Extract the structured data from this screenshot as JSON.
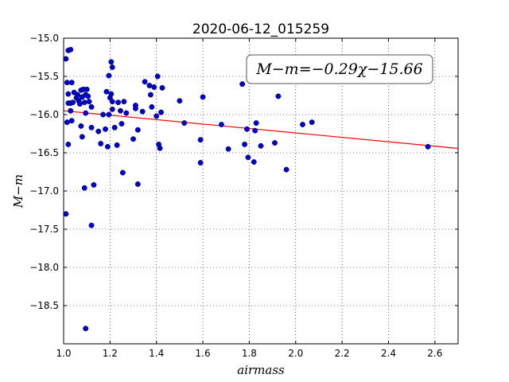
{
  "chart_data": {
    "type": "scatter",
    "title": "2020-06-12_015259",
    "xlabel": "airmass",
    "ylabel": "M−m",
    "xlim": [
      1.0,
      2.7
    ],
    "ylim": [
      -15.0,
      -19.0
    ],
    "y_inverted": true,
    "grid": true,
    "grid_style": "dotted",
    "x_ticks": [
      "1.0",
      "1.2",
      "1.4",
      "1.6",
      "1.8",
      "2.0",
      "2.2",
      "2.4",
      "2.6"
    ],
    "y_ticks": [
      "−15.0",
      "−15.5",
      "−16.0",
      "−16.5",
      "−17.0",
      "−17.5",
      "−18.0",
      "−18.5"
    ],
    "annotation": "M−m=−0.29χ−15.66",
    "annotation_position": "top-right",
    "fit_line": {
      "slope": -0.29,
      "intercept": -15.66,
      "color": "#ff0000"
    },
    "point_color": "#0000cc",
    "points": [
      [
        1.01,
        -15.27
      ],
      [
        1.02,
        -15.16
      ],
      [
        1.03,
        -15.15
      ],
      [
        1.015,
        -15.58
      ],
      [
        1.035,
        -15.58
      ],
      [
        1.02,
        -15.73
      ],
      [
        1.03,
        -15.85
      ],
      [
        1.02,
        -15.85
      ],
      [
        1.04,
        -15.84
      ],
      [
        1.055,
        -15.78
      ],
      [
        1.045,
        -15.71
      ],
      [
        1.06,
        -15.74
      ],
      [
        1.065,
        -15.82
      ],
      [
        1.07,
        -15.86
      ],
      [
        1.075,
        -15.68
      ],
      [
        1.08,
        -15.77
      ],
      [
        1.085,
        -15.67
      ],
      [
        1.09,
        -15.84
      ],
      [
        1.095,
        -15.74
      ],
      [
        1.1,
        -15.67
      ],
      [
        1.105,
        -15.76
      ],
      [
        1.11,
        -15.83
      ],
      [
        1.12,
        -15.9
      ],
      [
        1.03,
        -15.95
      ],
      [
        1.035,
        -16.08
      ],
      [
        1.015,
        -16.1
      ],
      [
        1.095,
        -15.98
      ],
      [
        1.075,
        -16.15
      ],
      [
        1.12,
        -16.17
      ],
      [
        1.08,
        -16.29
      ],
      [
        1.02,
        -16.39
      ],
      [
        1.09,
        -16.96
      ],
      [
        1.13,
        -16.92
      ],
      [
        1.01,
        -17.3
      ],
      [
        1.12,
        -17.45
      ],
      [
        1.095,
        -18.8
      ],
      [
        1.15,
        -16.22
      ],
      [
        1.16,
        -16.38
      ],
      [
        1.17,
        -16.0
      ],
      [
        1.18,
        -16.19
      ],
      [
        1.19,
        -16.42
      ],
      [
        1.185,
        -15.7
      ],
      [
        1.2,
        -15.78
      ],
      [
        1.195,
        -15.49
      ],
      [
        1.205,
        -15.31
      ],
      [
        1.21,
        -15.38
      ],
      [
        1.205,
        -15.73
      ],
      [
        1.21,
        -15.83
      ],
      [
        1.21,
        -15.93
      ],
      [
        1.195,
        -16.0
      ],
      [
        1.22,
        -16.17
      ],
      [
        1.23,
        -16.4
      ],
      [
        1.235,
        -15.84
      ],
      [
        1.245,
        -15.95
      ],
      [
        1.25,
        -16.12
      ],
      [
        1.26,
        -15.83
      ],
      [
        1.27,
        -15.98
      ],
      [
        1.255,
        -16.76
      ],
      [
        1.3,
        -16.32
      ],
      [
        1.31,
        -15.88
      ],
      [
        1.31,
        -15.92
      ],
      [
        1.32,
        -16.2
      ],
      [
        1.32,
        -16.91
      ],
      [
        1.34,
        -15.96
      ],
      [
        1.35,
        -15.57
      ],
      [
        1.37,
        -15.62
      ],
      [
        1.375,
        -15.74
      ],
      [
        1.38,
        -15.9
      ],
      [
        1.39,
        -15.64
      ],
      [
        1.4,
        -16.02
      ],
      [
        1.405,
        -15.5
      ],
      [
        1.41,
        -16.39
      ],
      [
        1.415,
        -16.44
      ],
      [
        1.42,
        -15.97
      ],
      [
        1.425,
        -15.65
      ],
      [
        1.5,
        -15.82
      ],
      [
        1.52,
        -16.11
      ],
      [
        1.59,
        -16.33
      ],
      [
        1.59,
        -16.63
      ],
      [
        1.6,
        -15.77
      ],
      [
        1.68,
        -16.13
      ],
      [
        1.71,
        -16.45
      ],
      [
        1.77,
        -15.6
      ],
      [
        1.78,
        -16.39
      ],
      [
        1.795,
        -16.56
      ],
      [
        1.79,
        -16.19
      ],
      [
        1.82,
        -16.62
      ],
      [
        1.825,
        -16.21
      ],
      [
        1.83,
        -16.11
      ],
      [
        1.85,
        -16.41
      ],
      [
        1.91,
        -16.37
      ],
      [
        1.925,
        -15.76
      ],
      [
        1.96,
        -16.72
      ],
      [
        2.03,
        -16.13
      ],
      [
        2.07,
        -16.1
      ],
      [
        2.57,
        -16.42
      ]
    ]
  }
}
